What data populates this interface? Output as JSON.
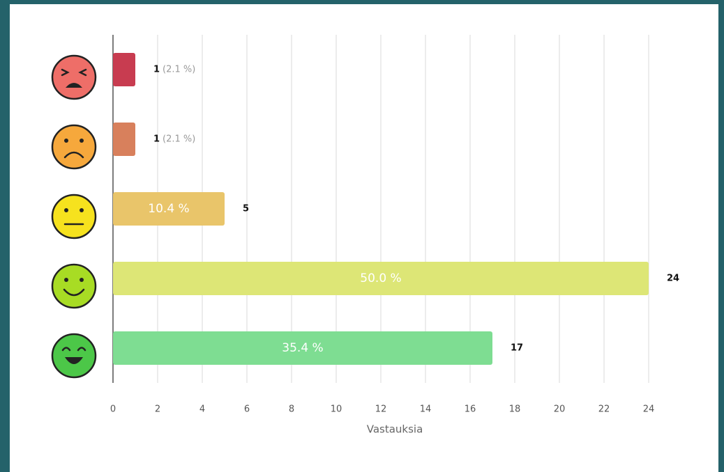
{
  "chart_data": {
    "type": "hbar",
    "categories": [
      null,
      null,
      null,
      null,
      null
    ],
    "values": [
      1,
      1,
      5,
      24,
      17
    ],
    "percent_labels": [
      "(2.1 %)",
      "(2.1 %)",
      "10.4 %",
      "50.0 %",
      "35.4 %"
    ],
    "colors": [
      "#c83c50",
      "#d8805c",
      "#e9c56a",
      "#dde676",
      "#7edd92"
    ],
    "xlabel": "Vastauksia",
    "xlim": [
      0,
      24
    ],
    "xticks": [
      0,
      2,
      4,
      6,
      8,
      10,
      12,
      14,
      16,
      18,
      20,
      22,
      24
    ],
    "grid": true
  }
}
